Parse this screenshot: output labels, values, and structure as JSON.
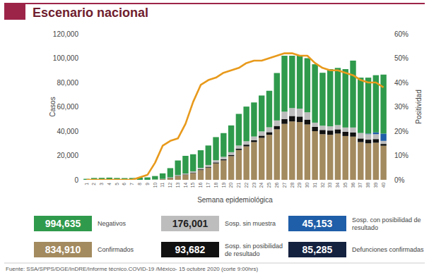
{
  "chart_data": {
    "type": "bar",
    "stacked": true,
    "title": "Escenario nacional",
    "x_label": "Semana epidemiológica",
    "y_label": "Casos",
    "source": "Fuente: SSA/SPPS/DGE/InDRE/Informe técnico.COVID-19 /México- 15 octubre 2020 (corte 9:00hrs)",
    "categories": [
      "1",
      "2",
      "3",
      "4",
      "5",
      "6",
      "7",
      "8",
      "9",
      "10",
      "11",
      "12",
      "13",
      "14",
      "15",
      "16",
      "17",
      "18",
      "19",
      "20",
      "21",
      "22",
      "23",
      "24",
      "25",
      "26",
      "27",
      "28",
      "29",
      "30",
      "31",
      "32",
      "33",
      "34",
      "35",
      "36",
      "37",
      "38",
      "39",
      "40"
    ],
    "ylim": [
      0,
      120000
    ],
    "yticks": [
      0,
      {
        "value": 20000,
        "label": "20,000"
      },
      {
        "value": 40000,
        "label": "40,000"
      },
      {
        "value": 60000,
        "label": "60,000"
      },
      {
        "value": 80000,
        "label": "80,000"
      },
      {
        "value": 100000,
        "label": "100,000"
      },
      {
        "value": 120000,
        "label": "120,000"
      }
    ],
    "y2lim": [
      0,
      60
    ],
    "y2ticks": [
      {
        "value": 0,
        "label": "0%"
      },
      {
        "value": 10,
        "label": "10%"
      },
      {
        "value": 20,
        "label": "20%"
      },
      {
        "value": 30,
        "label": "30%"
      },
      {
        "value": 40,
        "label": "40%"
      },
      {
        "value": 50,
        "label": "50%"
      },
      {
        "value": 60,
        "label": "60%"
      }
    ],
    "grid": false,
    "series": [
      {
        "name": "Confirmados",
        "color": "#a38a5f",
        "total": 834910,
        "total_label": "834,910",
        "values": [
          0,
          0,
          0,
          0,
          0,
          0,
          0,
          0,
          0,
          200,
          500,
          1500,
          3000,
          4000,
          5500,
          8000,
          10000,
          13500,
          16000,
          19500,
          24500,
          27500,
          31000,
          34500,
          37000,
          41500,
          46000,
          48000,
          47500,
          45500,
          40000,
          37500,
          37000,
          38000,
          36000,
          35500,
          31000,
          30000,
          30500,
          28000
        ]
      },
      {
        "name": "Sosp. sin posibilidad de resultado",
        "color": "#111111",
        "total": 93682,
        "total_label": "93,682",
        "values": [
          0,
          0,
          0,
          0,
          0,
          0,
          0,
          0,
          0,
          0,
          100,
          200,
          300,
          400,
          500,
          600,
          700,
          800,
          900,
          1000,
          1200,
          1400,
          1600,
          1800,
          2200,
          2800,
          4000,
          4500,
          4500,
          4000,
          3500,
          3500,
          3500,
          3500,
          3500,
          3500,
          3000,
          3000,
          3000,
          1500
        ]
      },
      {
        "name": "Sosp. sin muestra",
        "color": "#bdbdbd",
        "total": 176001,
        "total_label": "176,001",
        "values": [
          0,
          0,
          0,
          0,
          0,
          0,
          0,
          0,
          0,
          100,
          200,
          400,
          600,
          800,
          1000,
          1200,
          1500,
          1800,
          2000,
          2200,
          2500,
          2800,
          3000,
          3500,
          4000,
          4500,
          6000,
          6500,
          6500,
          6000,
          3500,
          3500,
          3500,
          3500,
          3500,
          4000,
          4500,
          4500,
          4000,
          2500
        ]
      },
      {
        "name": "Sosp. con posibilidad de resultado",
        "color": "#1f5ea8",
        "total": 45153,
        "total_label": "45,153",
        "values": [
          0,
          0,
          0,
          0,
          0,
          0,
          0,
          0,
          0,
          0,
          0,
          0,
          0,
          0,
          0,
          0,
          0,
          0,
          0,
          0,
          0,
          0,
          0,
          0,
          0,
          0,
          0,
          0,
          0,
          0,
          0,
          0,
          0,
          0,
          0,
          0,
          0,
          500,
          1500,
          6000
        ]
      },
      {
        "name": "Negativos",
        "color": "#2f9a4c",
        "total": 994635,
        "total_label": "994,635",
        "values": [
          800,
          1500,
          1600,
          1800,
          1500,
          1400,
          1500,
          1800,
          2000,
          2800,
          4500,
          7500,
          12000,
          14500,
          14000,
          14500,
          16000,
          19000,
          19500,
          22000,
          26000,
          28500,
          28000,
          29500,
          30000,
          39000,
          46000,
          43000,
          43500,
          44500,
          48000,
          43500,
          47000,
          47000,
          48000,
          55000,
          45500,
          46000,
          47000,
          48500
        ]
      },
      {
        "name": "Positividad",
        "type": "line",
        "axis": "y2",
        "color": "#e89a1c",
        "values": [
          0,
          0,
          0,
          0,
          0,
          0,
          0,
          1,
          2,
          7,
          14,
          16,
          17,
          23,
          32,
          39,
          41,
          42,
          44,
          45,
          46,
          48,
          49,
          49,
          50,
          51,
          52,
          52,
          51,
          51,
          48,
          46,
          45,
          45,
          44,
          43,
          41,
          40,
          40,
          38
        ]
      }
    ],
    "deaths": {
      "name": "Defunciones confirmadas",
      "value": 85285,
      "label": "85,285",
      "color": "#14213f"
    }
  }
}
